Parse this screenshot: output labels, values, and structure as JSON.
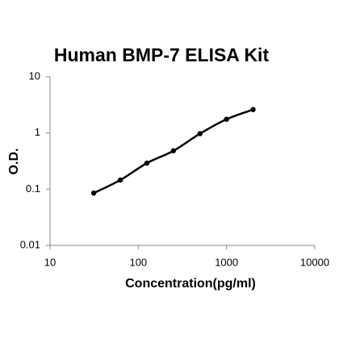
{
  "chart_data": {
    "type": "scatter",
    "title": "Human BMP-7 ELISA Kit",
    "x_label": "Concentration(pg/ml)",
    "y_label": "O.D.",
    "x": [
      31.25,
      62.5,
      125,
      250,
      500,
      1000,
      2000
    ],
    "series": [
      {
        "values": [
          0.085,
          0.145,
          0.29,
          0.48,
          0.97,
          1.75,
          2.6
        ],
        "color": "#000000"
      }
    ],
    "xlim": [
      10,
      10000
    ],
    "ylim": [
      0.01,
      10
    ],
    "xticks": [
      10,
      100,
      1000,
      10000
    ],
    "yticks": [
      0.01,
      0.1,
      1,
      10
    ],
    "xscale": "log",
    "yscale": "log",
    "grid": false,
    "smooth_line": true
  }
}
